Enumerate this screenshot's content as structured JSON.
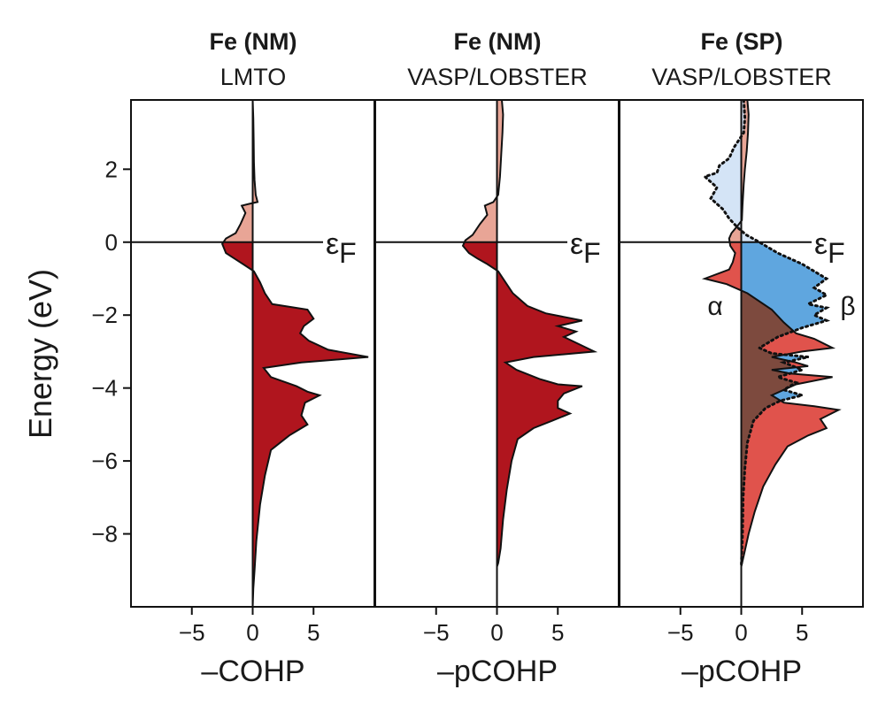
{
  "colors": {
    "dark_red": "#b0151e",
    "light_red": "#e8a596",
    "alpha_red": "#e0534c",
    "beta_blue": "#5fa6df",
    "light_blue": "#cfe1f5",
    "overlap_brown": "#7d4a3e",
    "alpha_label": "#e0534c",
    "beta_label": "#5fa6df",
    "sp_title": "#e0534c"
  },
  "ylabel": "Energy (eV)",
  "fermi_label": "ε",
  "fermi_sub": "F",
  "chart_data": [
    {
      "type": "area",
      "title": "Fe (NM)",
      "subtitle": "LMTO",
      "xlabel": "–COHP",
      "xlim": [
        -10,
        10
      ],
      "ylim": [
        -10,
        3.9
      ],
      "xticks": [
        -5,
        0,
        5
      ],
      "yticks": [
        -8,
        -6,
        -4,
        -2,
        0,
        2
      ],
      "fermi_level": 0,
      "series": [
        {
          "style": "filled",
          "values": [
            [
              0,
              3.9
            ],
            [
              0.05,
              3.4
            ],
            [
              0.08,
              2.8
            ],
            [
              0.1,
              2.2
            ],
            [
              0.15,
              1.7
            ],
            [
              0.25,
              1.3
            ],
            [
              0.4,
              1.1
            ],
            [
              -0.3,
              1.05
            ],
            [
              -0.9,
              1.0
            ],
            [
              -0.6,
              0.8
            ],
            [
              -1.0,
              0.5
            ],
            [
              -1.4,
              0.25
            ],
            [
              -2.2,
              0.1
            ],
            [
              -2.5,
              -0.05
            ],
            [
              -2.2,
              -0.3
            ],
            [
              -1.5,
              -0.45
            ],
            [
              -0.8,
              -0.6
            ],
            [
              0.1,
              -0.8
            ],
            [
              0.6,
              -1.1
            ],
            [
              1.0,
              -1.4
            ],
            [
              1.6,
              -1.7
            ],
            [
              4.5,
              -1.85
            ],
            [
              5.0,
              -2.1
            ],
            [
              4.2,
              -2.3
            ],
            [
              3.9,
              -2.5
            ],
            [
              4.6,
              -2.7
            ],
            [
              6.2,
              -2.95
            ],
            [
              9.5,
              -3.15
            ],
            [
              4.0,
              -3.3
            ],
            [
              0.9,
              -3.45
            ],
            [
              1.5,
              -3.7
            ],
            [
              3.6,
              -3.95
            ],
            [
              4.5,
              -4.1
            ],
            [
              5.5,
              -4.2
            ],
            [
              4.3,
              -4.4
            ],
            [
              4.0,
              -4.75
            ],
            [
              4.5,
              -5.0
            ],
            [
              3.0,
              -5.3
            ],
            [
              1.5,
              -5.7
            ],
            [
              1.0,
              -6.4
            ],
            [
              0.6,
              -7.2
            ],
            [
              0.3,
              -8.2
            ],
            [
              0.15,
              -9.0
            ],
            [
              0.05,
              -9.5
            ],
            [
              0,
              -10
            ]
          ]
        }
      ]
    },
    {
      "type": "area",
      "title": "Fe (NM)",
      "subtitle": "VASP/LOBSTER",
      "xlabel": "–pCOHP",
      "xlim": [
        -10,
        10
      ],
      "ylim": [
        -10,
        3.9
      ],
      "xticks": [
        -5,
        0,
        5
      ],
      "yticks": [
        -8,
        -6,
        -4,
        -2,
        0,
        2
      ],
      "fermi_level": 0,
      "series": [
        {
          "style": "filled",
          "values": [
            [
              0.4,
              3.9
            ],
            [
              0.5,
              3.5
            ],
            [
              0.45,
              3.0
            ],
            [
              0.35,
              2.4
            ],
            [
              0.25,
              1.8
            ],
            [
              0.1,
              1.3
            ],
            [
              -0.3,
              1.1
            ],
            [
              -1.0,
              1.0
            ],
            [
              -0.8,
              0.75
            ],
            [
              -1.4,
              0.5
            ],
            [
              -2.0,
              0.2
            ],
            [
              -2.6,
              0.05
            ],
            [
              -2.8,
              -0.1
            ],
            [
              -2.3,
              -0.3
            ],
            [
              -1.6,
              -0.45
            ],
            [
              -0.8,
              -0.6
            ],
            [
              0.1,
              -0.8
            ],
            [
              0.7,
              -1.1
            ],
            [
              1.3,
              -1.4
            ],
            [
              2.5,
              -1.75
            ],
            [
              4.0,
              -1.95
            ],
            [
              7.0,
              -2.15
            ],
            [
              5.0,
              -2.3
            ],
            [
              6.5,
              -2.45
            ],
            [
              5.5,
              -2.6
            ],
            [
              8.0,
              -3.0
            ],
            [
              3.0,
              -3.15
            ],
            [
              0.7,
              -3.3
            ],
            [
              1.6,
              -3.5
            ],
            [
              3.5,
              -3.75
            ],
            [
              5.0,
              -3.9
            ],
            [
              7.0,
              -3.95
            ],
            [
              5.5,
              -4.15
            ],
            [
              5.0,
              -4.35
            ],
            [
              5.0,
              -4.55
            ],
            [
              6.0,
              -4.7
            ],
            [
              4.5,
              -4.9
            ],
            [
              3.0,
              -5.1
            ],
            [
              1.7,
              -5.4
            ],
            [
              1.2,
              -6.0
            ],
            [
              0.8,
              -6.8
            ],
            [
              0.5,
              -7.6
            ],
            [
              0.3,
              -8.4
            ],
            [
              0.1,
              -8.8
            ],
            [
              0,
              -8.9
            ]
          ]
        }
      ]
    },
    {
      "type": "area",
      "title": "Fe (SP)",
      "subtitle": "VASP/LOBSTER",
      "xlabel": "–pCOHP",
      "xlim": [
        -10,
        10
      ],
      "ylim": [
        -10,
        3.9
      ],
      "xticks": [
        -5,
        0,
        5
      ],
      "yticks": [
        -8,
        -6,
        -4,
        -2,
        0,
        2
      ],
      "fermi_level": 0,
      "series": [
        {
          "name": "α",
          "style": "filled",
          "values": [
            [
              0.5,
              3.9
            ],
            [
              0.6,
              3.5
            ],
            [
              0.55,
              3.0
            ],
            [
              0.45,
              2.5
            ],
            [
              0.3,
              2.0
            ],
            [
              0.2,
              1.6
            ],
            [
              0.1,
              1.0
            ],
            [
              0.05,
              0.6
            ],
            [
              -0.3,
              0.45
            ],
            [
              -0.8,
              0.25
            ],
            [
              -1.0,
              0.1
            ],
            [
              -0.9,
              -0.1
            ],
            [
              -0.5,
              -0.3
            ],
            [
              -0.7,
              -0.55
            ],
            [
              -1.0,
              -0.75
            ],
            [
              -3.0,
              -1.0
            ],
            [
              -1.2,
              -1.15
            ],
            [
              0.5,
              -1.4
            ],
            [
              2.5,
              -1.85
            ],
            [
              3.5,
              -2.2
            ],
            [
              4.5,
              -2.5
            ],
            [
              6.0,
              -2.65
            ],
            [
              7.5,
              -2.9
            ],
            [
              5.0,
              -3.0
            ],
            [
              2.5,
              -3.15
            ],
            [
              4.5,
              -3.3
            ],
            [
              5.5,
              -3.4
            ],
            [
              2.5,
              -3.5
            ],
            [
              4.0,
              -3.6
            ],
            [
              7.5,
              -3.7
            ],
            [
              4.5,
              -3.9
            ],
            [
              2.5,
              -4.2
            ],
            [
              3.5,
              -4.4
            ],
            [
              6.0,
              -4.5
            ],
            [
              8.0,
              -4.6
            ],
            [
              6.5,
              -4.85
            ],
            [
              7.0,
              -5.1
            ],
            [
              5.5,
              -5.3
            ],
            [
              3.8,
              -5.6
            ],
            [
              2.8,
              -6.1
            ],
            [
              1.8,
              -6.7
            ],
            [
              1.1,
              -7.4
            ],
            [
              0.6,
              -8.0
            ],
            [
              0.2,
              -8.6
            ],
            [
              0,
              -8.9
            ]
          ]
        },
        {
          "name": "β",
          "style": "dotted",
          "values": [
            [
              0.2,
              3.9
            ],
            [
              0.3,
              3.4
            ],
            [
              0.2,
              3.0
            ],
            [
              -0.6,
              2.6
            ],
            [
              -1.0,
              2.3
            ],
            [
              -1.8,
              2.1
            ],
            [
              -2.0,
              1.9
            ],
            [
              -3.0,
              1.8
            ],
            [
              -2.0,
              1.5
            ],
            [
              -2.5,
              1.2
            ],
            [
              -1.5,
              0.9
            ],
            [
              -1.0,
              0.65
            ],
            [
              -0.3,
              0.4
            ],
            [
              0.4,
              0.2
            ],
            [
              1.5,
              0.0
            ],
            [
              3.0,
              -0.3
            ],
            [
              5.0,
              -0.6
            ],
            [
              7.0,
              -1.0
            ],
            [
              6.0,
              -1.25
            ],
            [
              7.0,
              -1.45
            ],
            [
              5.5,
              -1.7
            ],
            [
              7.0,
              -1.8
            ],
            [
              6.0,
              -2.0
            ],
            [
              7.0,
              -2.15
            ],
            [
              5.0,
              -2.35
            ],
            [
              3.0,
              -2.6
            ],
            [
              1.5,
              -2.9
            ],
            [
              2.5,
              -3.05
            ],
            [
              5.5,
              -3.15
            ],
            [
              3.5,
              -3.3
            ],
            [
              5.0,
              -3.5
            ],
            [
              3.0,
              -3.7
            ],
            [
              4.5,
              -3.85
            ],
            [
              3.5,
              -4.05
            ],
            [
              5.0,
              -4.2
            ],
            [
              3.2,
              -4.35
            ],
            [
              2.0,
              -4.55
            ],
            [
              1.0,
              -4.9
            ],
            [
              0.5,
              -5.5
            ],
            [
              0.3,
              -6.2
            ],
            [
              0.15,
              -7.0
            ],
            [
              0.1,
              -8.0
            ],
            [
              0,
              -8.9
            ]
          ]
        }
      ],
      "series_labels": [
        "α",
        "β"
      ]
    }
  ]
}
